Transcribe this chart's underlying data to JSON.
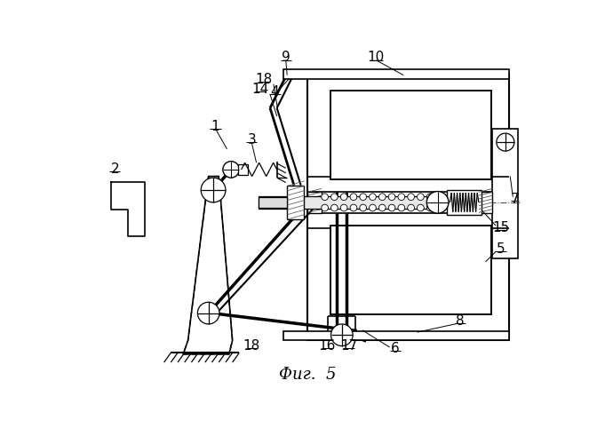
{
  "caption": "Фиг.  5",
  "caption_fontsize": 13,
  "bg_color": "#ffffff",
  "line_color": "#000000",
  "fig_width": 6.63,
  "fig_height": 5.0,
  "dpi": 100
}
